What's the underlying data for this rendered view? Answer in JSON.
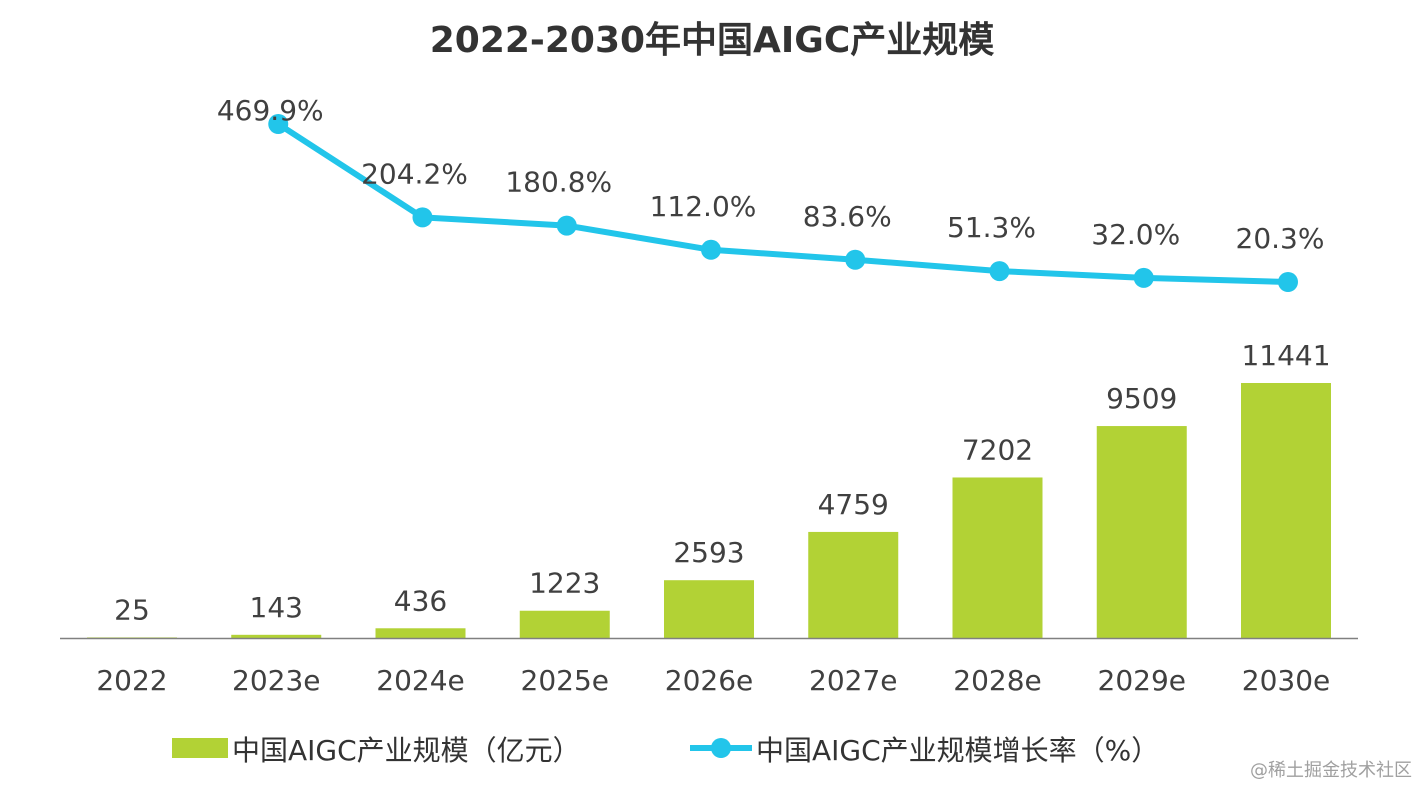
{
  "chart_data": {
    "type": "bar",
    "title": "2022-2030年中国AIGC产业规模",
    "categories": [
      "2022",
      "2023e",
      "2024e",
      "2025e",
      "2026e",
      "2027e",
      "2028e",
      "2029e",
      "2030e"
    ],
    "series": [
      {
        "name": "中国AIGC产业规模（亿元）",
        "type": "bar",
        "values": [
          25,
          143,
          436,
          1223,
          2593,
          4759,
          7202,
          9509,
          11441
        ],
        "labels": [
          "25",
          "143",
          "436",
          "1223",
          "2593",
          "4759",
          "7202",
          "9509",
          "11441"
        ]
      },
      {
        "name": "中国AIGC产业规模增长率（%）",
        "type": "line",
        "values": [
          null,
          469.9,
          204.2,
          180.8,
          112.0,
          83.6,
          51.3,
          32.0,
          20.3
        ],
        "labels": [
          "",
          "469.9%",
          "204.2%",
          "180.8%",
          "112.0%",
          "83.6%",
          "51.3%",
          "32.0%",
          "20.3%"
        ]
      }
    ],
    "bar_ylim": [
      0,
      11441
    ],
    "line_ylim": [
      20.3,
      469.9
    ],
    "legend_position": "bottom",
    "grid": false,
    "colors": {
      "bar": "#b2d235",
      "line": "#22c5ea",
      "axis": "#808080",
      "text": "#404040"
    }
  },
  "watermark": "@稀土掘金技术社区"
}
